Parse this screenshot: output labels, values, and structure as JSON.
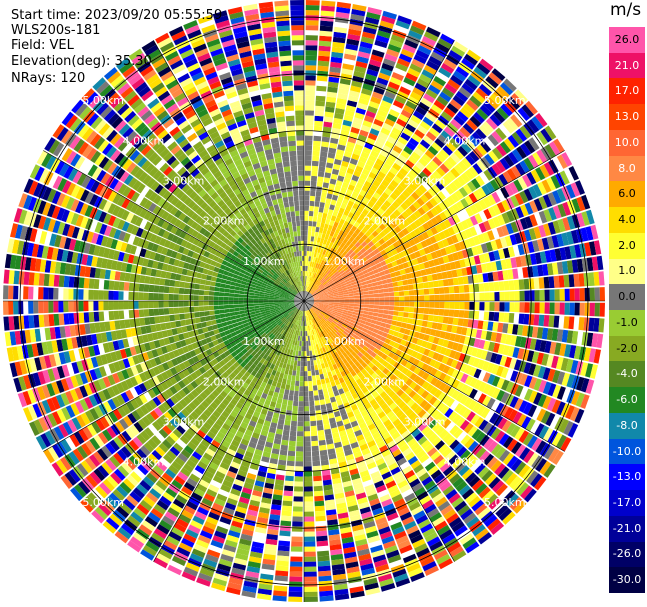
{
  "header": {
    "start_time": "Start time: 2023/09/20 05:55:59",
    "station": "WLS200s-181",
    "field": "Field: VEL",
    "elevation": "Elevation(deg): 35.30",
    "nrays": "NRays: 120"
  },
  "colorbar": {
    "unit": "m/s",
    "levels": [
      {
        "label": "26.0",
        "color": "#ff55aa"
      },
      {
        "label": "21.0",
        "color": "#ee1166"
      },
      {
        "label": "17.0",
        "color": "#ff2200"
      },
      {
        "label": "13.0",
        "color": "#ff4400"
      },
      {
        "label": "10.0",
        "color": "#ff6633"
      },
      {
        "label": "8.0",
        "color": "#ff8844"
      },
      {
        "label": "6.0",
        "color": "#ffaa00"
      },
      {
        "label": "4.0",
        "color": "#ffdd00"
      },
      {
        "label": "2.0",
        "color": "#ffff33"
      },
      {
        "label": "1.0",
        "color": "#ffff88"
      },
      {
        "label": "0.0",
        "color": "#777777"
      },
      {
        "label": "-1.0",
        "color": "#99cc33"
      },
      {
        "label": "-2.0",
        "color": "#88aa22"
      },
      {
        "label": "-4.0",
        "color": "#558822"
      },
      {
        "label": "-6.0",
        "color": "#228822"
      },
      {
        "label": "-8.0",
        "color": "#1188aa"
      },
      {
        "label": "-10.0",
        "color": "#0055dd"
      },
      {
        "label": "-13.0",
        "color": "#0000ff"
      },
      {
        "label": "-17.0",
        "color": "#0000cc"
      },
      {
        "label": "-21.0",
        "color": "#000099"
      },
      {
        "label": "-26.0",
        "color": "#000066"
      },
      {
        "label": "-30.0",
        "color": "#000044"
      }
    ]
  },
  "ppi": {
    "range_rings": [
      {
        "label": "1.00km",
        "range_km": 1
      },
      {
        "label": "2.00km",
        "range_km": 2
      },
      {
        "label": "3.00km",
        "range_km": 3
      },
      {
        "label": "4.00km",
        "range_km": 4
      },
      {
        "label": "5.00km",
        "range_km": 5
      }
    ],
    "max_range_km": 5.3,
    "nrays": 120
  }
}
